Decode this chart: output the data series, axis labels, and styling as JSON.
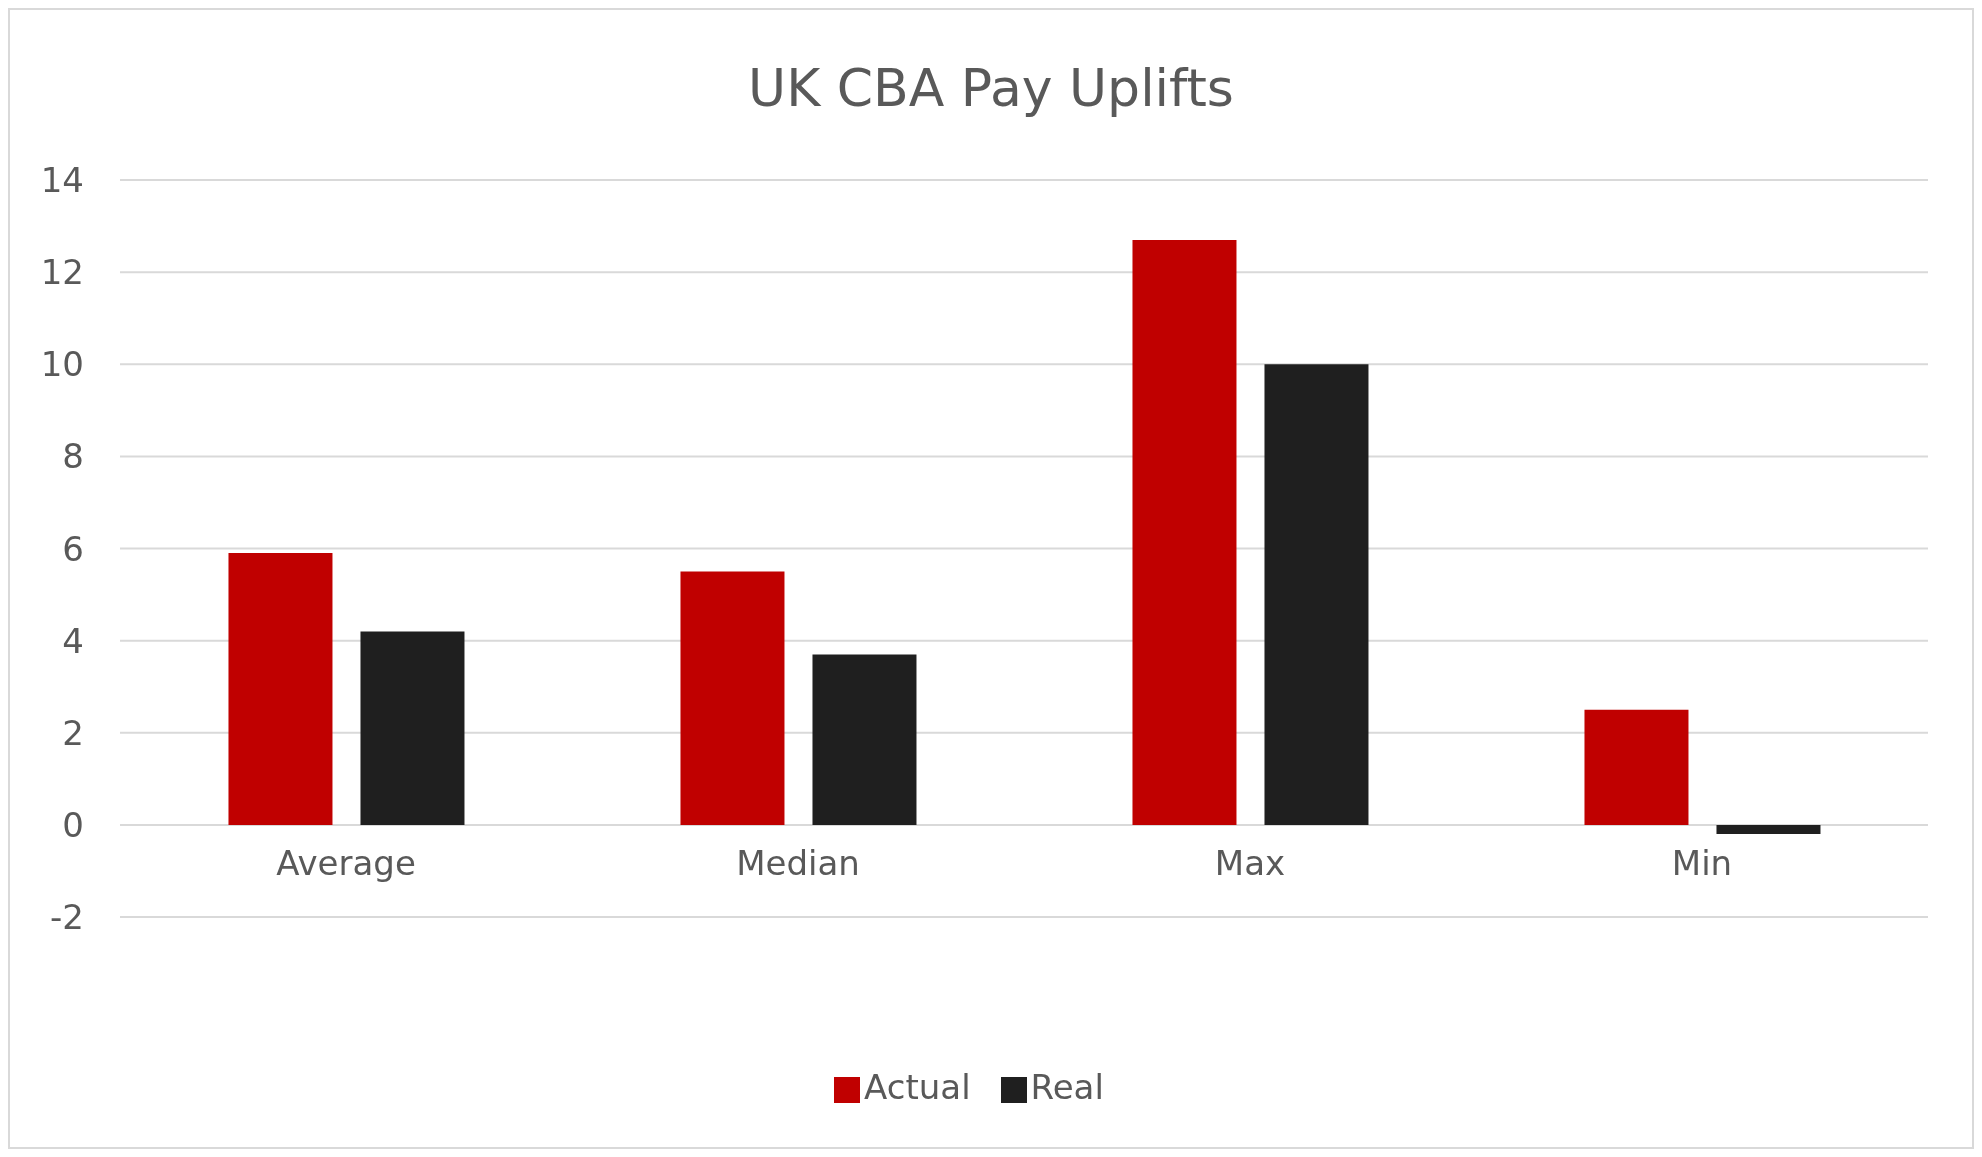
{
  "chart_data": {
    "type": "bar",
    "title": "UK CBA Pay Uplifts",
    "categories": [
      "Average",
      "Median",
      "Max",
      "Min"
    ],
    "series": [
      {
        "name": "Actual",
        "color": "#c00000",
        "values": [
          5.9,
          5.5,
          12.7,
          2.5
        ]
      },
      {
        "name": "Real",
        "color": "#1f1f1f",
        "values": [
          4.2,
          3.7,
          10.0,
          -0.2
        ]
      }
    ],
    "ylim": [
      -2,
      14
    ],
    "yticks": [
      -2,
      0,
      2,
      4,
      6,
      8,
      10,
      12,
      14
    ],
    "grid": "y",
    "legend": "bottom"
  }
}
